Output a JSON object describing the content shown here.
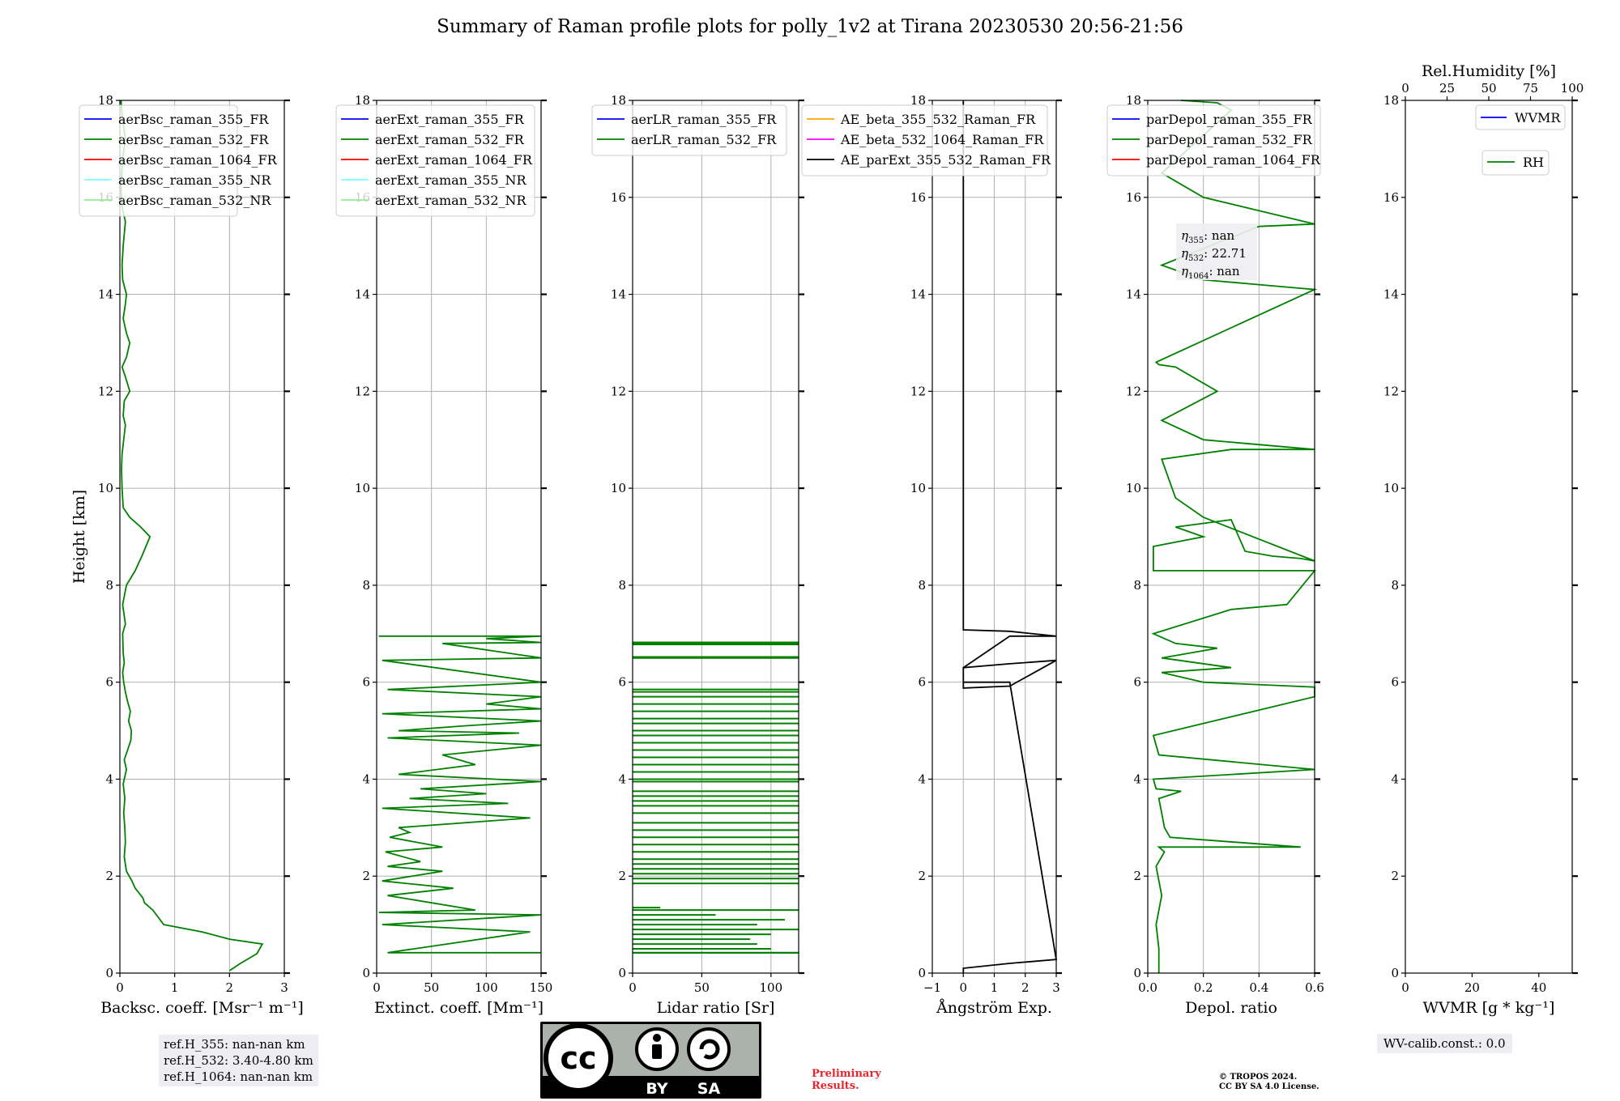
{
  "title": "Summary of Raman profile plots for polly_1v2 at Tirana 20230530 20:56-21:56",
  "colors": {
    "blue": "#0000ff",
    "green": "#008000",
    "red": "#ff0000",
    "cyan": "#7fffff",
    "lightgreen": "#90ee90",
    "orange": "#ffa500",
    "magenta": "#ff00ff",
    "black": "#000000"
  },
  "ref_heights": [
    "ref.H_355: nan-nan km",
    "ref.H_532: 3.40-4.80 km",
    "ref.H_1064: nan-nan km"
  ],
  "eta_labels": {
    "e355_sym": "η",
    "e355_sub": "355",
    "e355_val": ": nan",
    "e532_sym": "η",
    "e532_sub": "532",
    "e532_val": ": 22.71",
    "e1064_sym": "η",
    "e1064_sub": "1064",
    "e1064_val": ": nan"
  },
  "wv_calib": "WV-calib.const.: 0.0",
  "preliminary": [
    "Preliminary",
    "Results."
  ],
  "copyright": [
    "© TROPOS 2024.",
    "CC BY SA 4.0 License."
  ],
  "license_logo": {
    "cc": "cc",
    "by": "BY",
    "sa": "SA"
  },
  "chart_data": [
    {
      "type": "line",
      "xlabel": "Backsc. coeff. [Msr⁻¹ m⁻¹]",
      "ylabel": "Height [km]",
      "xlim": [
        0,
        3
      ],
      "ylim": [
        0,
        18
      ],
      "xticks": [
        "0",
        "1",
        "2",
        "3"
      ],
      "yticks": [
        "0",
        "2",
        "4",
        "6",
        "8",
        "10",
        "12",
        "14",
        "16",
        "18"
      ],
      "grid": true,
      "legend_placement": "top-left",
      "series": [
        {
          "name": "aerBsc_raman_355_FR",
          "color": "blue",
          "x": [],
          "y": []
        },
        {
          "name": "aerBsc_raman_532_FR",
          "color": "green",
          "x": [
            2.0,
            2.2,
            2.5,
            2.6,
            2.0,
            1.5,
            0.8,
            0.6,
            0.45,
            0.42,
            0.28,
            0.22,
            0.12,
            0.08,
            0.1,
            0.09,
            0.07,
            0.09,
            0.06,
            0.12,
            0.08,
            0.14,
            0.2,
            0.21,
            0.16,
            0.19,
            0.14,
            0.1,
            0.07,
            0.05,
            0.08,
            0.06,
            0.05,
            0.1,
            0.05,
            0.12,
            0.28,
            0.4,
            0.55,
            0.38,
            0.18,
            0.06,
            0.04,
            0.03,
            0.04,
            0.07,
            0.1,
            0.06,
            0.08,
            0.18,
            0.1,
            0.04,
            0.12,
            0.18,
            0.12,
            0.06,
            0.1,
            0.12,
            0.05,
            0.04,
            0.06,
            0.1,
            0.04,
            0.02,
            0.05,
            0.1,
            0.04,
            0.02
          ],
          "y": [
            0.05,
            0.2,
            0.4,
            0.6,
            0.7,
            0.85,
            1.0,
            1.3,
            1.45,
            1.55,
            1.75,
            1.9,
            2.1,
            2.4,
            2.7,
            3.0,
            3.3,
            3.6,
            3.9,
            4.2,
            4.4,
            4.6,
            4.8,
            5.0,
            5.2,
            5.4,
            5.6,
            5.8,
            6.0,
            6.2,
            6.4,
            6.6,
            7.0,
            7.2,
            7.6,
            8.0,
            8.3,
            8.6,
            9.0,
            9.2,
            9.4,
            9.6,
            10.0,
            10.4,
            10.7,
            11.0,
            11.3,
            11.5,
            11.8,
            12.0,
            12.3,
            12.5,
            12.7,
            13.0,
            13.2,
            13.5,
            13.8,
            14.0,
            14.3,
            14.6,
            15.0,
            15.5,
            15.8,
            16.2,
            16.8,
            17.2,
            17.7,
            18.0
          ]
        },
        {
          "name": "aerBsc_raman_1064_FR",
          "color": "red",
          "x": [],
          "y": []
        },
        {
          "name": "aerBsc_raman_355_NR",
          "color": "cyan",
          "x": [],
          "y": []
        },
        {
          "name": "aerBsc_raman_532_NR",
          "color": "lightgreen",
          "x": [],
          "y": []
        }
      ]
    },
    {
      "type": "line",
      "xlabel": "Extinct. coeff. [Mm⁻¹]",
      "xlim": [
        0,
        150
      ],
      "ylim": [
        0,
        18
      ],
      "xticks": [
        "0",
        "50",
        "100",
        "150"
      ],
      "yticks": [
        "0",
        "2",
        "4",
        "6",
        "8",
        "10",
        "12",
        "14",
        "16",
        "18"
      ],
      "grid": true,
      "legend_placement": "top-left",
      "series": [
        {
          "name": "aerExt_raman_355_FR",
          "color": "blue",
          "x": [],
          "y": []
        },
        {
          "name": "aerExt_raman_532_FR",
          "color": "green",
          "x": [
            150,
            10,
            140,
            5,
            150,
            2,
            90,
            10,
            70,
            5,
            60,
            10,
            40,
            8,
            60,
            12,
            30,
            20,
            140,
            5,
            120,
            30,
            100,
            40,
            150,
            20,
            90,
            60,
            150,
            10,
            130,
            20,
            80,
            150,
            5,
            150,
            100,
            150,
            10,
            150,
            5,
            150,
            60,
            150,
            100,
            150,
            2
          ],
          "y": [
            0.42,
            0.42,
            0.85,
            1.0,
            1.2,
            1.25,
            1.3,
            1.6,
            1.75,
            1.9,
            2.1,
            2.2,
            2.3,
            2.5,
            2.6,
            2.8,
            2.9,
            3.0,
            3.2,
            3.4,
            3.5,
            3.6,
            3.7,
            3.8,
            3.95,
            4.1,
            4.3,
            4.5,
            4.7,
            4.85,
            4.95,
            5.0,
            5.1,
            5.2,
            5.35,
            5.45,
            5.55,
            5.7,
            5.85,
            6.0,
            6.45,
            6.5,
            6.8,
            6.82,
            6.9,
            6.95,
            6.95
          ]
        },
        {
          "name": "aerExt_raman_1064_FR",
          "color": "red",
          "x": [],
          "y": []
        },
        {
          "name": "aerExt_raman_355_NR",
          "color": "cyan",
          "x": [],
          "y": []
        },
        {
          "name": "aerExt_raman_532_NR",
          "color": "lightgreen",
          "x": [],
          "y": []
        }
      ]
    },
    {
      "type": "line",
      "xlabel": "Lidar ratio [Sr]",
      "xlim": [
        0,
        120
      ],
      "ylim": [
        0,
        18
      ],
      "xticks": [
        "0",
        "50",
        "100"
      ],
      "yticks": [
        "0",
        "2",
        "4",
        "6",
        "8",
        "10",
        "12",
        "14",
        "16",
        "18"
      ],
      "grid": true,
      "legend_placement": "top-left",
      "series": [
        {
          "name": "aerLR_raman_355_FR",
          "color": "blue",
          "x": [],
          "y": []
        },
        {
          "name": "aerLR_raman_532_FR",
          "color": "green",
          "x": [
            0,
            120,
            100,
            90,
            85,
            100,
            120,
            90,
            110,
            60,
            120,
            20,
            120,
            120,
            120,
            120,
            120,
            120,
            120,
            120,
            120,
            120,
            120,
            120,
            120,
            120,
            120,
            120,
            120,
            120,
            120,
            120,
            120,
            120,
            120,
            120,
            120,
            120,
            120,
            120,
            120,
            120,
            120,
            120,
            120,
            120,
            120,
            120,
            120,
            120,
            120,
            120
          ],
          "y": [
            0.42,
            0.42,
            0.5,
            0.6,
            0.7,
            0.8,
            0.9,
            1.0,
            1.1,
            1.2,
            1.3,
            1.35,
            1.85,
            1.95,
            2.05,
            2.15,
            2.25,
            2.35,
            2.5,
            2.65,
            2.8,
            2.95,
            3.1,
            3.3,
            3.45,
            3.55,
            3.65,
            3.75,
            3.95,
            4.0,
            4.15,
            4.3,
            4.45,
            4.6,
            4.75,
            4.9,
            5.0,
            5.15,
            5.25,
            5.4,
            5.55,
            5.7,
            5.8,
            5.85,
            6.5,
            6.52,
            6.78,
            6.8,
            6.82,
            0,
            0,
            0
          ]
        }
      ]
    },
    {
      "type": "line",
      "xlabel": "Ångström Exp.",
      "xlim": [
        -1,
        3
      ],
      "ylim": [
        0,
        18
      ],
      "xticks": [
        "−1",
        "0",
        "1",
        "2",
        "3"
      ],
      "yticks": [
        "0",
        "2",
        "4",
        "6",
        "8",
        "10",
        "12",
        "14",
        "16",
        "18"
      ],
      "grid": true,
      "legend_placement": "top-left",
      "series": [
        {
          "name": "AE_beta_355_532_Raman_FR",
          "color": "orange",
          "x": [],
          "y": []
        },
        {
          "name": "AE_beta_532_1064_Raman_FR",
          "color": "magenta",
          "x": [],
          "y": []
        },
        {
          "name": "AE_parExt_355_532_Raman_FR",
          "color": "black",
          "x": [
            0,
            0,
            1.5,
            3.0,
            1.5,
            0,
            0,
            1.5,
            3.0,
            1.5,
            0,
            0,
            1.5,
            3.0,
            1.5,
            0,
            0
          ],
          "y": [
            0,
            0.1,
            0.2,
            0.28,
            6.0,
            6.0,
            6.3,
            6.38,
            6.45,
            5.92,
            5.88,
            6.3,
            6.95,
            6.95,
            7.05,
            7.08,
            18.0
          ]
        }
      ]
    },
    {
      "type": "line",
      "xlabel": "Depol. ratio",
      "xlim": [
        0,
        0.6
      ],
      "ylim": [
        0,
        18
      ],
      "xticks": [
        "0.0",
        "0.2",
        "0.4",
        "0.6"
      ],
      "yticks": [
        "0",
        "2",
        "4",
        "6",
        "8",
        "10",
        "12",
        "14",
        "16",
        "18"
      ],
      "grid": true,
      "legend_placement": "top-left",
      "series": [
        {
          "name": "parDepol_raman_355_FR",
          "color": "blue",
          "x": [],
          "y": []
        },
        {
          "name": "parDepol_raman_532_FR",
          "color": "green",
          "x": [
            0.04,
            0.04,
            0.03,
            0.05,
            0.03,
            0.06,
            0.04,
            0.55,
            0.08,
            0.06,
            0.05,
            0.04,
            0.12,
            0.03,
            0.02,
            0.6,
            0.04,
            0.02,
            0.6,
            0.6,
            0.6,
            0.2,
            0.05,
            0.3,
            0.05,
            0.25,
            0.1,
            0.02,
            0.3,
            0.5,
            0.6,
            0.02,
            0.02,
            0.2,
            0.1,
            0.3,
            0.35,
            0.45,
            0.55,
            0.6,
            0.2,
            0.1,
            0.05,
            0.3,
            0.6,
            0.2,
            0.05,
            0.25,
            0.1,
            0.04,
            0.03,
            0.6,
            0.4,
            0.2,
            0.05,
            0.4,
            0.6,
            0.2,
            0.05,
            0.3,
            0.25,
            0.12
          ],
          "y": [
            0.0,
            0.5,
            1.0,
            1.6,
            2.2,
            2.5,
            2.6,
            2.6,
            2.8,
            3.0,
            3.3,
            3.6,
            3.75,
            3.8,
            4.0,
            4.2,
            4.5,
            4.9,
            5.7,
            5.75,
            5.9,
            6.0,
            6.2,
            6.3,
            6.5,
            6.7,
            6.8,
            7.0,
            7.5,
            7.6,
            8.3,
            8.3,
            8.8,
            9.0,
            9.2,
            9.35,
            8.7,
            8.6,
            8.55,
            8.5,
            9.4,
            9.8,
            10.6,
            10.8,
            10.8,
            11.0,
            11.4,
            12.0,
            12.5,
            12.55,
            12.6,
            14.1,
            14.2,
            14.3,
            14.6,
            15.4,
            15.45,
            16.0,
            16.5,
            17.8,
            17.95,
            18.0
          ]
        },
        {
          "name": "parDepol_raman_1064_FR",
          "color": "red",
          "x": [],
          "y": []
        }
      ]
    },
    {
      "type": "line",
      "xlabel": "WVMR [g * kg⁻¹]",
      "x2label": "Rel.Humidity [%]",
      "xlim": [
        0,
        50
      ],
      "x2lim": [
        0,
        100
      ],
      "ylim": [
        0,
        18
      ],
      "xticks": [
        "0",
        "20",
        "40"
      ],
      "x2ticks": [
        "0",
        "25",
        "50",
        "75",
        "100"
      ],
      "yticks": [
        "0",
        "2",
        "4",
        "6",
        "8",
        "10",
        "12",
        "14",
        "16",
        "18"
      ],
      "grid": false,
      "legend_placement": "top-right",
      "series": [
        {
          "name": "WVMR",
          "color": "blue",
          "x": [],
          "y": []
        },
        {
          "name": "RH",
          "color": "green",
          "x": [],
          "y": []
        }
      ]
    }
  ]
}
